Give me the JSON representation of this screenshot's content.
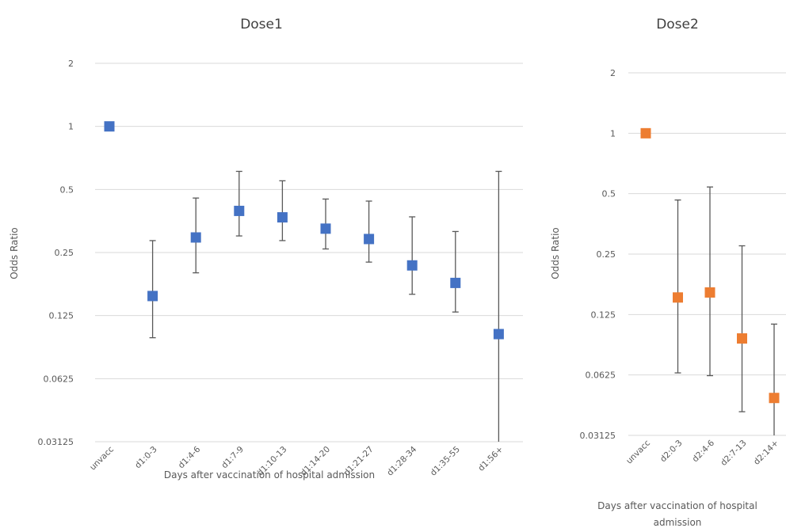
{
  "chart_data": [
    {
      "type": "scatter",
      "title": "Dose1",
      "xlabel": "Days after vaccination of hospital admission",
      "ylabel": "Odds Ratio",
      "yscale": "log2",
      "ylim": [
        0.03125,
        2
      ],
      "yticks": [
        "2",
        "1",
        "0.5",
        "0.25",
        "0.125",
        "0.0625",
        "0.03125"
      ],
      "grid": true,
      "marker_color": "#4472c4",
      "categories": [
        "unvacc",
        "d1:0-3",
        "d1:4-6",
        "d1:7-9",
        "d1:10-13",
        "d1:14-20",
        "d1:21-27",
        "d1:28-34",
        "d1:35-55",
        "d1:56+"
      ],
      "values": [
        1.0,
        0.155,
        0.295,
        0.395,
        0.368,
        0.325,
        0.29,
        0.217,
        0.179,
        0.102
      ],
      "lower": [
        null,
        0.098,
        0.2,
        0.3,
        0.285,
        0.26,
        0.225,
        0.158,
        0.13,
        0.03125
      ],
      "upper": [
        null,
        0.285,
        0.455,
        0.61,
        0.55,
        0.45,
        0.44,
        0.37,
        0.315,
        0.61
      ]
    },
    {
      "type": "scatter",
      "title": "Dose2",
      "xlabel": "Days after vaccination of hospital admission",
      "ylabel": "Odds Ratio",
      "yscale": "log2",
      "ylim": [
        0.03125,
        2
      ],
      "yticks": [
        "2",
        "1",
        "0.5",
        "0.25",
        "0.125",
        "0.0625",
        "0.03125"
      ],
      "grid": true,
      "marker_color": "#ed7d31",
      "categories": [
        "unvacc",
        "d2:0-3",
        "d2:4-6",
        "d2:7-13",
        "d2:14+"
      ],
      "values": [
        1.0,
        0.152,
        0.161,
        0.095,
        0.048
      ],
      "lower": [
        null,
        0.064,
        0.062,
        0.041,
        0.03125
      ],
      "upper": [
        null,
        0.465,
        0.54,
        0.275,
        0.112
      ]
    }
  ]
}
